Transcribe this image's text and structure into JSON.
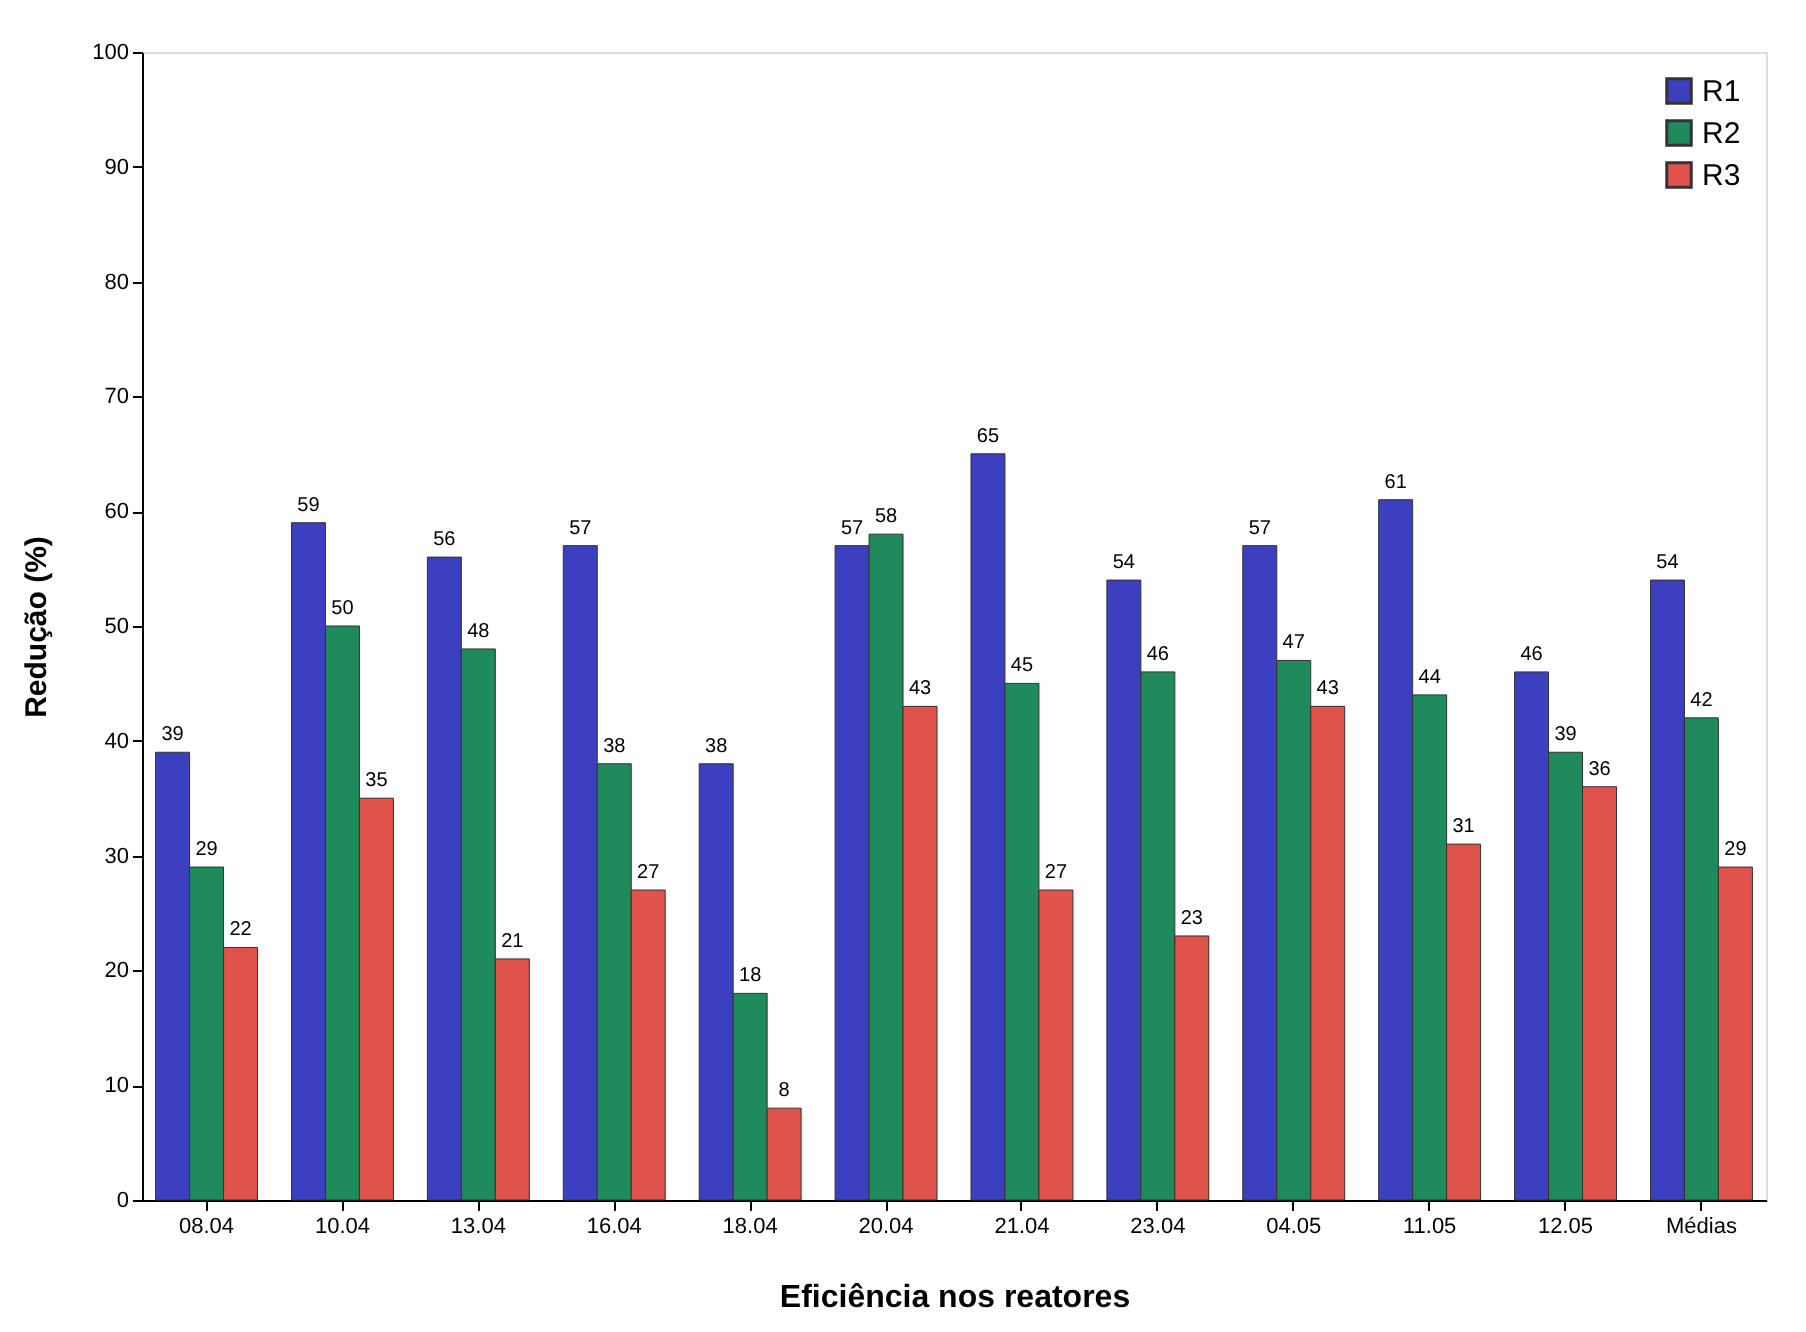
{
  "chart_data": {
    "type": "bar",
    "xlabel": "Eficiência nos reatores",
    "ylabel": "Redução  (%)",
    "categories": [
      "08.04",
      "10.04",
      "13.04",
      "16.04",
      "18.04",
      "20.04",
      "21.04",
      "23.04",
      "04.05",
      "11.05",
      "12.05",
      "Médias"
    ],
    "series": [
      {
        "name": "R1",
        "color": "#3c3fbf",
        "values": [
          39,
          59,
          56,
          57,
          38,
          57,
          65,
          54,
          57,
          61,
          46,
          54
        ]
      },
      {
        "name": "R2",
        "color": "#1f8a5c",
        "values": [
          29,
          50,
          48,
          38,
          18,
          58,
          45,
          46,
          47,
          44,
          39,
          42
        ]
      },
      {
        "name": "R3",
        "color": "#e0524c",
        "values": [
          22,
          35,
          21,
          27,
          8,
          43,
          27,
          23,
          43,
          31,
          36,
          29
        ]
      }
    ],
    "ylim": [
      0,
      100
    ],
    "yticks": [
      0,
      10,
      20,
      30,
      40,
      50,
      60,
      70,
      80,
      90,
      100
    ],
    "data_labels": true,
    "legend": "top right",
    "grid": false
  }
}
